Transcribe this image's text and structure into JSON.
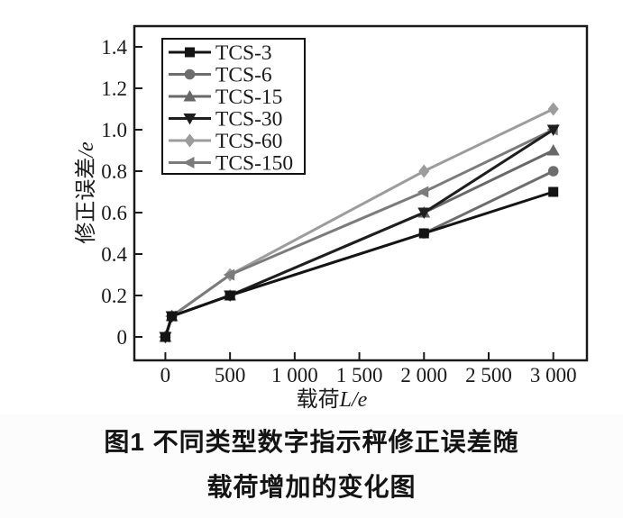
{
  "figure": {
    "caption_line1": "图1  不同类型数字指示秤修正误差随",
    "caption_line2": "载荷增加的变化图"
  },
  "chart_data": {
    "type": "line",
    "title": "",
    "xlabel": "载荷L/e",
    "ylabel": "修正误差/e",
    "x": [
      0,
      50,
      500,
      2000,
      3000
    ],
    "series": [
      {
        "name": "TCS-3",
        "marker": "square",
        "color": "#141414",
        "values": [
          0,
          0.1,
          0.2,
          0.5,
          0.7
        ]
      },
      {
        "name": "TCS-6",
        "marker": "circle",
        "color": "#6d6d6d",
        "values": [
          0,
          0.1,
          0.2,
          0.5,
          0.8
        ]
      },
      {
        "name": "TCS-15",
        "marker": "triangle-up",
        "color": "#686868",
        "values": [
          0,
          0.1,
          0.2,
          0.6,
          0.9
        ]
      },
      {
        "name": "TCS-30",
        "marker": "triangle-down",
        "color": "#1e1e1e",
        "values": [
          0,
          0.1,
          0.2,
          0.6,
          1.0
        ]
      },
      {
        "name": "TCS-60",
        "marker": "diamond",
        "color": "#9c9c9c",
        "values": [
          0,
          0.1,
          0.3,
          0.8,
          1.1
        ]
      },
      {
        "name": "TCS-150",
        "marker": "triangle-left",
        "color": "#7b7b7b",
        "values": [
          0,
          0.1,
          0.3,
          0.7,
          1.0
        ]
      }
    ],
    "x_ticks": [
      0,
      500,
      1000,
      1500,
      2000,
      2500,
      3000
    ],
    "x_tick_labels": [
      "0",
      "500",
      "1 000",
      "1 500",
      "2 000",
      "2 500",
      "3 000"
    ],
    "y_ticks": [
      0,
      0.2,
      0.4,
      0.6,
      0.8,
      1.0,
      1.2,
      1.4
    ],
    "y_tick_labels": [
      "0",
      "0.2",
      "0.4",
      "0.6",
      "0.8",
      "1.0",
      "1.2",
      "1.4"
    ],
    "xlim": [
      -240,
      3260
    ],
    "ylim": [
      -0.113,
      1.5
    ],
    "grid": false,
    "legend_position": "upper-left-inside",
    "axis_color": "#1a1a1a",
    "background": "#ffffff"
  }
}
